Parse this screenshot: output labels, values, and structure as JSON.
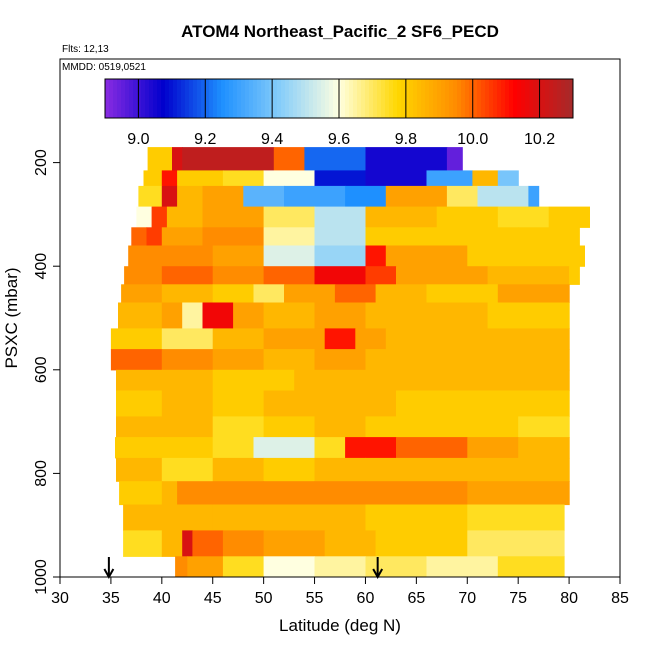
{
  "chart_data": {
    "type": "heatmap",
    "title": "ATOM4 Northeast_Pacific_2 SF6_PECD",
    "subtitle_flights": "Flts: 12,13",
    "subtitle_dates": "MMDD: 0519,0521",
    "xlabel": "Latitude (deg N)",
    "ylabel": "PSXC (mbar)",
    "xlim": [
      30,
      85
    ],
    "ylim": [
      1000,
      0
    ],
    "x_ticks": [
      "30",
      "35",
      "40",
      "45",
      "50",
      "55",
      "60",
      "65",
      "70",
      "75",
      "80",
      "85"
    ],
    "y_ticks": [
      "200",
      "400",
      "600",
      "800",
      "1000"
    ],
    "colorbar": {
      "range": [
        8.9,
        10.3
      ],
      "tick_values": [
        9.0,
        9.2,
        9.4,
        9.6,
        9.8,
        10.0,
        10.2
      ],
      "tick_labels": [
        "9.0",
        "9.2",
        "9.4",
        "9.6",
        "9.8",
        "10.0",
        "10.2"
      ],
      "color_stops": [
        "#8a2be2",
        "#0000cd",
        "#1e90ff",
        "#87cefa",
        "#ffffe0",
        "#ffd700",
        "#ff8c00",
        "#ff0000",
        "#a52a2a"
      ]
    },
    "arrows_latitude": [
      34.8,
      61.2
    ],
    "curtain_segments": [
      {
        "p": [
          170,
          215
        ],
        "segs": [
          [
            38.6,
            41,
            9.8
          ],
          [
            41,
            42,
            10.2
          ],
          [
            42,
            51,
            10.25
          ],
          [
            51,
            54,
            10.0
          ],
          [
            54,
            60,
            9.2
          ],
          [
            60,
            68,
            9.05
          ],
          [
            68,
            69.5,
            8.95
          ]
        ]
      },
      {
        "p": [
          215,
          245
        ],
        "segs": [
          [
            38.2,
            40,
            9.8
          ],
          [
            40,
            41.5,
            10.1
          ],
          [
            41.5,
            46,
            9.8
          ],
          [
            46,
            50,
            9.75
          ],
          [
            50,
            55,
            9.6
          ],
          [
            55,
            60,
            9.1
          ],
          [
            60,
            66,
            9.05
          ],
          [
            66,
            70.5,
            9.3
          ],
          [
            70.5,
            73,
            9.85
          ],
          [
            73,
            75,
            9.4
          ]
        ]
      },
      {
        "p": [
          245,
          285
        ],
        "segs": [
          [
            37.7,
            40,
            9.75
          ],
          [
            40,
            41.5,
            10.2
          ],
          [
            41.5,
            44,
            9.85
          ],
          [
            44,
            48,
            9.9
          ],
          [
            48,
            52,
            9.35
          ],
          [
            52,
            58,
            9.3
          ],
          [
            58,
            62,
            9.25
          ],
          [
            62,
            68,
            9.9
          ],
          [
            68,
            71,
            9.7
          ],
          [
            71,
            76,
            9.5
          ],
          [
            76,
            77,
            9.3
          ]
        ]
      },
      {
        "p": [
          285,
          325
        ],
        "segs": [
          [
            37.5,
            39,
            9.6
          ],
          [
            39,
            40.5,
            10.05
          ],
          [
            40.5,
            44,
            9.85
          ],
          [
            44,
            50,
            9.9
          ],
          [
            50,
            55,
            9.7
          ],
          [
            55,
            60,
            9.5
          ],
          [
            60,
            67,
            9.85
          ],
          [
            67,
            73,
            9.8
          ],
          [
            73,
            78,
            9.75
          ],
          [
            78,
            82,
            9.8
          ]
        ]
      },
      {
        "p": [
          325,
          360
        ],
        "segs": [
          [
            37,
            38.5,
            10.0
          ],
          [
            38.5,
            40,
            10.05
          ],
          [
            40,
            44,
            9.9
          ],
          [
            44,
            50,
            9.95
          ],
          [
            50,
            55,
            9.65
          ],
          [
            55,
            60,
            9.5
          ],
          [
            60,
            67,
            9.8
          ],
          [
            67,
            75,
            9.8
          ],
          [
            75,
            81,
            9.8
          ]
        ]
      },
      {
        "p": [
          360,
          400
        ],
        "segs": [
          [
            36.7,
            40,
            9.95
          ],
          [
            40,
            45,
            9.95
          ],
          [
            45,
            50,
            9.9
          ],
          [
            50,
            55,
            9.55
          ],
          [
            55,
            60,
            9.45
          ],
          [
            60,
            62,
            10.1
          ],
          [
            62,
            70,
            9.9
          ],
          [
            70,
            80,
            9.8
          ],
          [
            80,
            81.5,
            9.8
          ]
        ]
      },
      {
        "p": [
          400,
          435
        ],
        "segs": [
          [
            36.3,
            40,
            9.95
          ],
          [
            40,
            45,
            10.0
          ],
          [
            45,
            50,
            9.95
          ],
          [
            50,
            55,
            10.0
          ],
          [
            55,
            60,
            10.15
          ],
          [
            60,
            63,
            10.05
          ],
          [
            63,
            72,
            9.9
          ],
          [
            72,
            80,
            9.85
          ],
          [
            80,
            81,
            9.8
          ]
        ]
      },
      {
        "p": [
          435,
          470
        ],
        "segs": [
          [
            36,
            40,
            9.9
          ],
          [
            40,
            45,
            9.85
          ],
          [
            45,
            49,
            9.8
          ],
          [
            49,
            52,
            9.7
          ],
          [
            52,
            57,
            9.9
          ],
          [
            57,
            61,
            10.0
          ],
          [
            61,
            66,
            9.85
          ],
          [
            66,
            73,
            9.8
          ],
          [
            73,
            80,
            9.9
          ]
        ]
      },
      {
        "p": [
          470,
          520
        ],
        "segs": [
          [
            35.7,
            40,
            9.85
          ],
          [
            40,
            42,
            9.9
          ],
          [
            42,
            44,
            9.65
          ],
          [
            44,
            47,
            10.15
          ],
          [
            47,
            50,
            9.9
          ],
          [
            50,
            55,
            9.85
          ],
          [
            55,
            60,
            9.9
          ],
          [
            60,
            65,
            9.85
          ],
          [
            65,
            72,
            9.85
          ],
          [
            72,
            80,
            9.8
          ]
        ]
      },
      {
        "p": [
          520,
          560
        ],
        "segs": [
          [
            35,
            40,
            9.8
          ],
          [
            40,
            45,
            9.7
          ],
          [
            45,
            50,
            9.85
          ],
          [
            50,
            56,
            9.9
          ],
          [
            56,
            59,
            10.1
          ],
          [
            59,
            62,
            9.9
          ],
          [
            62,
            70,
            9.85
          ],
          [
            70,
            80,
            9.85
          ]
        ]
      },
      {
        "p": [
          560,
          600
        ],
        "segs": [
          [
            35,
            40,
            10.0
          ],
          [
            40,
            45,
            9.95
          ],
          [
            45,
            50,
            9.9
          ],
          [
            50,
            55,
            9.85
          ],
          [
            55,
            60,
            9.9
          ],
          [
            60,
            70,
            9.85
          ],
          [
            70,
            80,
            9.85
          ]
        ]
      },
      {
        "p": [
          600,
          640
        ],
        "segs": [
          [
            35.5,
            40,
            9.85
          ],
          [
            40,
            45,
            9.85
          ],
          [
            45,
            53,
            9.8
          ],
          [
            53,
            57,
            9.85
          ],
          [
            57,
            65,
            9.85
          ],
          [
            65,
            80,
            9.85
          ]
        ]
      },
      {
        "p": [
          640,
          690
        ],
        "segs": [
          [
            35.5,
            40,
            9.8
          ],
          [
            40,
            45,
            9.85
          ],
          [
            45,
            50,
            9.8
          ],
          [
            50,
            57,
            9.85
          ],
          [
            57,
            63,
            9.85
          ],
          [
            63,
            70,
            9.8
          ],
          [
            70,
            80,
            9.8
          ]
        ]
      },
      {
        "p": [
          690,
          730
        ],
        "segs": [
          [
            35.5,
            40,
            9.85
          ],
          [
            40,
            45,
            9.85
          ],
          [
            45,
            50,
            9.75
          ],
          [
            50,
            55,
            9.8
          ],
          [
            55,
            60,
            9.85
          ],
          [
            60,
            66,
            9.8
          ],
          [
            66,
            75,
            9.8
          ],
          [
            75,
            80,
            9.75
          ]
        ]
      },
      {
        "p": [
          730,
          770
        ],
        "segs": [
          [
            35.4,
            40,
            9.8
          ],
          [
            40,
            45,
            9.8
          ],
          [
            45,
            49,
            9.75
          ],
          [
            49,
            55,
            9.55
          ],
          [
            55,
            58,
            9.75
          ],
          [
            58,
            63,
            10.1
          ],
          [
            63,
            70,
            10.0
          ],
          [
            70,
            75,
            9.9
          ],
          [
            75,
            80,
            9.85
          ]
        ]
      },
      {
        "p": [
          770,
          815
        ],
        "segs": [
          [
            35.5,
            40,
            9.85
          ],
          [
            40,
            45,
            9.75
          ],
          [
            45,
            50,
            9.85
          ],
          [
            50,
            55,
            9.8
          ],
          [
            55,
            60,
            9.85
          ],
          [
            60,
            70,
            9.85
          ],
          [
            70,
            80,
            9.85
          ]
        ]
      },
      {
        "p": [
          815,
          860
        ],
        "segs": [
          [
            35.8,
            40,
            9.8
          ],
          [
            40,
            41.5,
            9.85
          ],
          [
            41.5,
            50,
            9.95
          ],
          [
            50,
            55,
            9.95
          ],
          [
            55,
            60,
            9.95
          ],
          [
            60,
            70,
            9.95
          ],
          [
            70,
            80,
            9.9
          ]
        ]
      },
      {
        "p": [
          860,
          910
        ],
        "segs": [
          [
            36.2,
            40,
            9.85
          ],
          [
            40,
            45,
            9.85
          ],
          [
            45,
            50,
            9.85
          ],
          [
            50,
            55,
            9.85
          ],
          [
            55,
            60,
            9.85
          ],
          [
            60,
            70,
            9.8
          ],
          [
            70,
            79.5,
            9.75
          ]
        ]
      },
      {
        "p": [
          910,
          960
        ],
        "segs": [
          [
            36.2,
            40,
            9.75
          ],
          [
            40,
            42,
            9.85
          ],
          [
            42,
            43,
            10.2
          ],
          [
            43,
            46,
            10.0
          ],
          [
            46,
            50,
            9.95
          ],
          [
            50,
            56,
            9.9
          ],
          [
            56,
            61,
            9.85
          ],
          [
            61,
            70,
            9.8
          ],
          [
            70,
            75,
            9.7
          ],
          [
            75,
            79.5,
            9.7
          ]
        ]
      },
      {
        "p": [
          960,
          1000
        ],
        "segs": [
          [
            41.3,
            42.5,
            9.95
          ],
          [
            42.5,
            46,
            9.9
          ],
          [
            46,
            50,
            9.75
          ],
          [
            50,
            55,
            9.6
          ],
          [
            55,
            60,
            9.65
          ],
          [
            60,
            66,
            9.7
          ],
          [
            66,
            73,
            9.65
          ],
          [
            73,
            79.5,
            9.75
          ]
        ]
      }
    ]
  }
}
